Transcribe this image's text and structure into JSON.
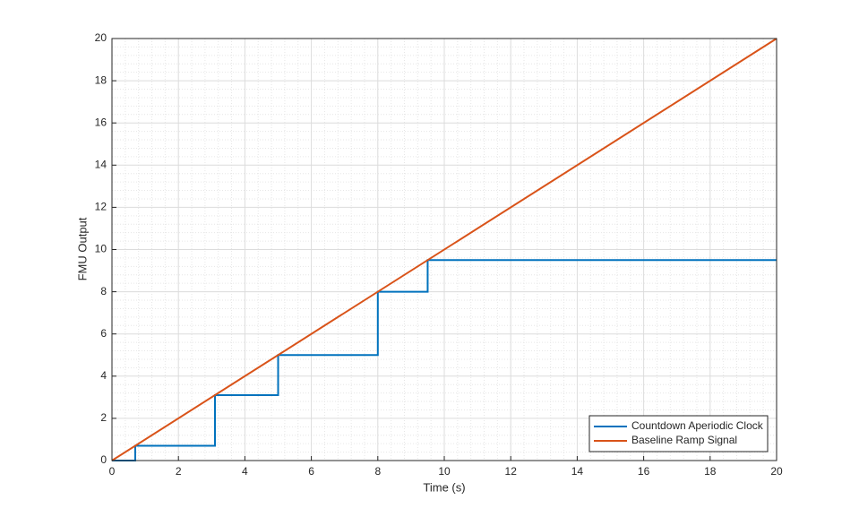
{
  "chart_data": {
    "type": "line",
    "xlabel": "Time (s)",
    "ylabel": "FMU Output",
    "series": [
      {
        "name": "Countdown Aperiodic Clock",
        "color": "#0072bd",
        "x": [
          0,
          0.7,
          0.7,
          3.1,
          3.1,
          5,
          5,
          8,
          8,
          9.5,
          9.5,
          20
        ],
        "values": [
          0,
          0,
          0.7,
          0.7,
          3.1,
          3.1,
          5,
          5,
          8,
          8,
          9.5,
          9.5
        ]
      },
      {
        "name": "Baseline Ramp Signal",
        "color": "#d95319",
        "x": [
          0,
          20
        ],
        "values": [
          0,
          20
        ]
      }
    ],
    "xlim": [
      0,
      20
    ],
    "xticks": [
      0,
      2,
      4,
      6,
      8,
      10,
      12,
      14,
      16,
      18,
      20
    ],
    "ylim": [
      0,
      20
    ],
    "yticks": [
      0,
      2,
      4,
      6,
      8,
      10,
      12,
      14,
      16,
      18,
      20
    ],
    "grid": true,
    "minor_grid": true,
    "legend": "lower right"
  }
}
